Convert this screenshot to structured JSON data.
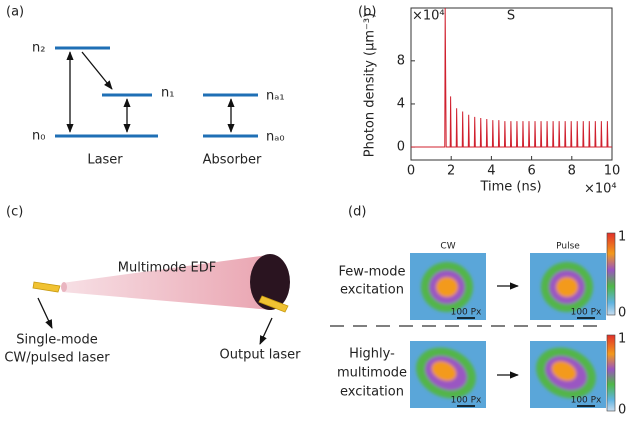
{
  "panel_a": {
    "label": "(a)",
    "levels": {
      "n2": "n₂",
      "n1": "n₁",
      "n0": "n₀",
      "na1": "nₐ₁",
      "na0": "nₐ₀"
    },
    "captions": [
      "Laser",
      "Absorber"
    ]
  },
  "chart_data": {
    "type": "line",
    "panel_label": "(b)",
    "title": "S",
    "y_label": "Photon density (μm⁻³)",
    "x_label": "Time (ns)",
    "x_multiplier": "×10⁴",
    "y_multiplier": "×10⁴",
    "xlim": [
      0,
      10
    ],
    "xticks": [
      0,
      2,
      4,
      6,
      8,
      10
    ],
    "ylim": [
      -1.2,
      12.9
    ],
    "yticks": [
      0,
      4,
      8
    ],
    "x": [
      0,
      1.68,
      1.7,
      1.75,
      1.95,
      1.97,
      2.0,
      2.25,
      2.27,
      2.3,
      2.55,
      2.57,
      2.6,
      2.85,
      2.87,
      2.9,
      3.15,
      3.17,
      3.2,
      3.45,
      3.47,
      3.5,
      3.75,
      3.77,
      3.8,
      4.05,
      4.07,
      4.1,
      4.35,
      4.37,
      4.4,
      4.65,
      4.67,
      4.7,
      4.95,
      4.97,
      5.0,
      5.25,
      5.27,
      5.3,
      5.55,
      5.57,
      5.6,
      5.85,
      5.87,
      5.9,
      6.15,
      6.17,
      6.2,
      6.45,
      6.47,
      6.5,
      6.75,
      6.77,
      6.8,
      7.05,
      7.07,
      7.1,
      7.35,
      7.37,
      7.4,
      7.65,
      7.67,
      7.7,
      7.95,
      7.97,
      8.0,
      8.25,
      8.27,
      8.3,
      8.55,
      8.57,
      8.6,
      8.85,
      8.87,
      8.9,
      9.15,
      9.17,
      9.2,
      9.45,
      9.47,
      9.5,
      9.75,
      9.77,
      9.8,
      10
    ],
    "series": [
      {
        "color": "#d0202e",
        "values": [
          0,
          0,
          12.9,
          0,
          0,
          4.7,
          0,
          0,
          3.6,
          0,
          0,
          3.3,
          0,
          0,
          3.0,
          0,
          0,
          2.8,
          0,
          0,
          2.7,
          0,
          0,
          2.6,
          0,
          0,
          2.5,
          0,
          0,
          2.5,
          0,
          0,
          2.4,
          0,
          0,
          2.4,
          0,
          0,
          2.4,
          0,
          0,
          2.4,
          0,
          0,
          2.4,
          0,
          0,
          2.4,
          0,
          0,
          2.4,
          0,
          0,
          2.4,
          0,
          0,
          2.4,
          0,
          0,
          2.4,
          0,
          0,
          2.4,
          0,
          0,
          2.4,
          0,
          0,
          2.4,
          0,
          0,
          2.4,
          0,
          0,
          2.4,
          0,
          0,
          2.4,
          0,
          0,
          2.4,
          0,
          0,
          2.4,
          0,
          0
        ]
      }
    ]
  },
  "panel_c": {
    "label": "(c)",
    "fiber": "Multimode EDF",
    "input": [
      "Single-mode",
      "CW/pulsed laser"
    ],
    "output": "Output laser"
  },
  "panel_d": {
    "label": "(d)",
    "columns": [
      "CW",
      "Pulse"
    ],
    "rows": [
      [
        "Few-mode",
        "excitation"
      ],
      [
        "Highly-",
        "multimode",
        "excitation"
      ]
    ],
    "scale": "100 Px",
    "colorbar": [
      "1",
      "0"
    ]
  }
}
